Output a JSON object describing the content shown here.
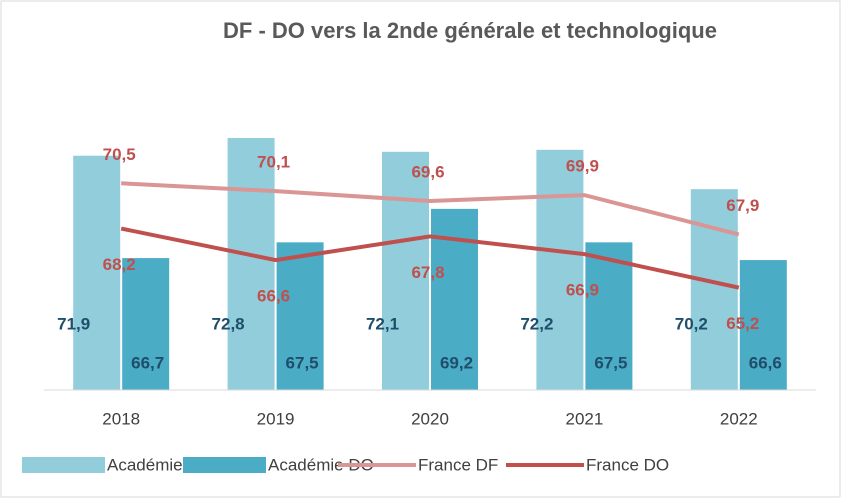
{
  "chart_data": {
    "type": "bar_line",
    "title": "DF - DO vers la 2nde générale et technologique",
    "categories": [
      "2018",
      "2019",
      "2020",
      "2021",
      "2022"
    ],
    "ylim": [
      60,
      76
    ],
    "series": [
      {
        "name": "Académie DF",
        "kind": "bar",
        "color": "#92cddc",
        "label_color": "#1f4e6b",
        "values": [
          71.9,
          72.8,
          72.1,
          72.2,
          70.2
        ],
        "value_labels": [
          "71,9",
          "72,8",
          "72,1",
          "72,2",
          "70,2"
        ]
      },
      {
        "name": "Académie DO",
        "kind": "bar",
        "color": "#4bacc6",
        "label_color": "#1f4e6b",
        "values": [
          66.7,
          67.5,
          69.2,
          67.5,
          66.6
        ],
        "value_labels": [
          "66,7",
          "67,5",
          "69,2",
          "67,5",
          "66,6"
        ]
      },
      {
        "name": "France DF",
        "kind": "line",
        "color": "#d99694",
        "label_color": "#c0504d",
        "values": [
          70.5,
          70.1,
          69.6,
          69.9,
          67.9
        ],
        "value_labels": [
          "70,5",
          "70,1",
          "69,6",
          "69,9",
          "67,9"
        ]
      },
      {
        "name": "France DO",
        "kind": "line",
        "color": "#c0504d",
        "label_color": "#c0504d",
        "values": [
          68.2,
          66.6,
          67.8,
          66.9,
          65.2
        ],
        "value_labels": [
          "68,2",
          "66,6",
          "67,8",
          "66,9",
          "65,2"
        ]
      }
    ]
  }
}
